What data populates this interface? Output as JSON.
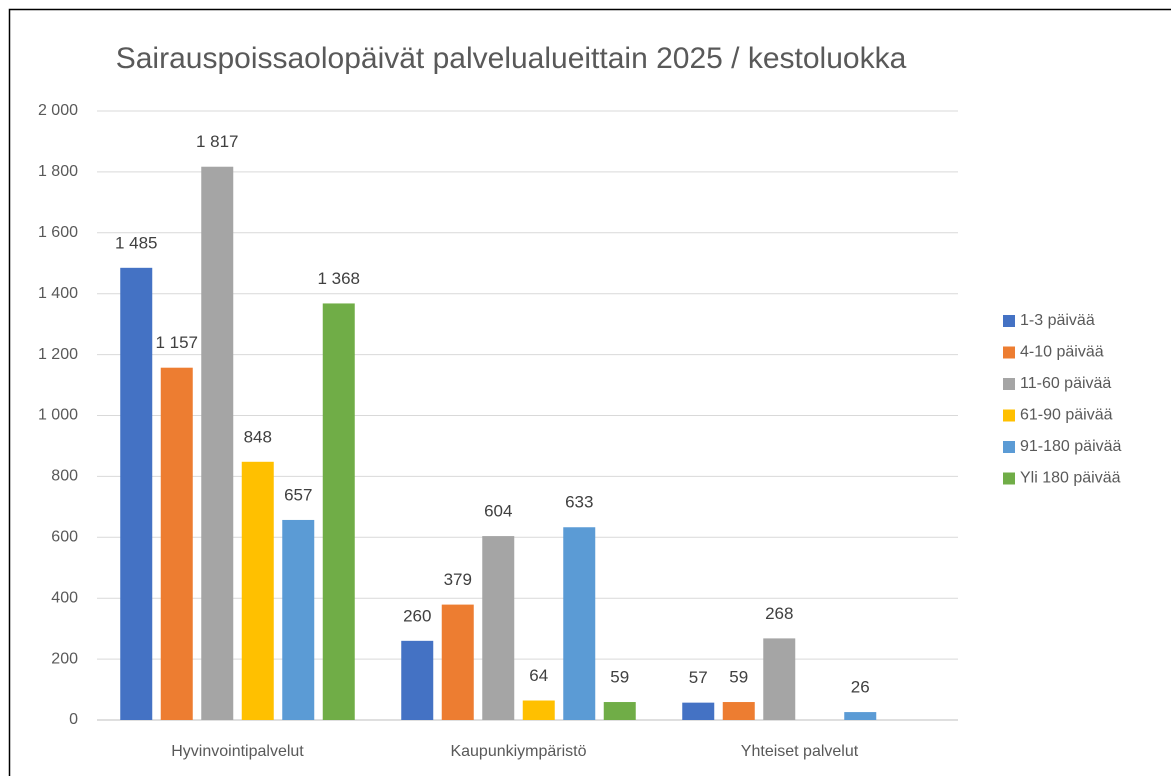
{
  "chart_data": {
    "type": "bar",
    "title": "Sairauspoissaolopäivät palvelualueittain 2025 / kestoluokka",
    "categories": [
      "Hyvinvointipalvelut",
      "Kaupunkiympäristö",
      "Yhteiset palvelut"
    ],
    "series": [
      {
        "name": "1-3 päivää",
        "color": "#4472c4",
        "values": [
          1485,
          260,
          57
        ],
        "value_labels": [
          "1 485",
          "260",
          "57"
        ]
      },
      {
        "name": "4-10 päivää",
        "color": "#ed7d31",
        "values": [
          1157,
          379,
          59
        ],
        "value_labels": [
          "1 157",
          "379",
          "59"
        ]
      },
      {
        "name": "11-60 päivää",
        "color": "#a5a5a5",
        "values": [
          1817,
          604,
          268
        ],
        "value_labels": [
          "1 817",
          "604",
          "268"
        ]
      },
      {
        "name": "61-90 päivää",
        "color": "#ffc000",
        "values": [
          848,
          64,
          null
        ],
        "value_labels": [
          "848",
          "64",
          null
        ]
      },
      {
        "name": "91-180 päivää",
        "color": "#5b9bd5",
        "values": [
          657,
          633,
          26
        ],
        "value_labels": [
          "657",
          "633",
          "26"
        ]
      },
      {
        "name": "Yli 180 päivää",
        "color": "#70ad47",
        "values": [
          1368,
          59,
          null
        ],
        "value_labels": [
          "1 368",
          "59",
          null
        ]
      }
    ],
    "ylim": [
      0,
      2000
    ],
    "yticks": [
      0,
      200,
      400,
      600,
      800,
      {
        "value": 1000,
        "label": "1 000"
      },
      {
        "value": 1200,
        "label": "1 200"
      },
      {
        "value": 1400,
        "label": "1 400"
      },
      {
        "value": 1600,
        "label": "1 600"
      },
      {
        "value": 1800,
        "label": "1 800"
      },
      {
        "value": 2000,
        "label": "2 000"
      }
    ],
    "grid": true,
    "legend": "right"
  }
}
